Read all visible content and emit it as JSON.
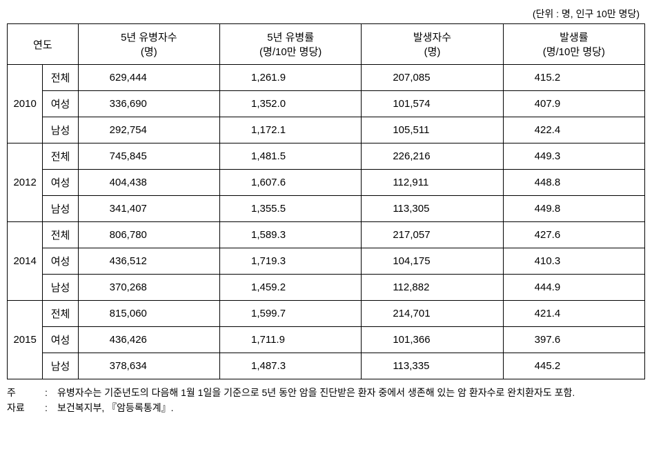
{
  "unit_label": "(단위 : 명,  인구  10만 명당)",
  "headers": {
    "year": "연도",
    "col1": "5년 유병자수\n(명)",
    "col2": "5년 유병률\n(명/10만 명당)",
    "col3": "발생자수\n(명)",
    "col4": "발생률\n(명/10만 명당)"
  },
  "years": [
    {
      "year": "2010",
      "rows": [
        {
          "category": "전체",
          "c1": "629,444",
          "c2": "1,261.9",
          "c3": "207,085",
          "c4": "415.2"
        },
        {
          "category": "여성",
          "c1": "336,690",
          "c2": "1,352.0",
          "c3": "101,574",
          "c4": "407.9"
        },
        {
          "category": "남성",
          "c1": "292,754",
          "c2": "1,172.1",
          "c3": "105,511",
          "c4": "422.4"
        }
      ]
    },
    {
      "year": "2012",
      "rows": [
        {
          "category": "전체",
          "c1": "745,845",
          "c2": "1,481.5",
          "c3": "226,216",
          "c4": "449.3"
        },
        {
          "category": "여성",
          "c1": "404,438",
          "c2": "1,607.6",
          "c3": "112,911",
          "c4": "448.8"
        },
        {
          "category": "남성",
          "c1": "341,407",
          "c2": "1,355.5",
          "c3": "113,305",
          "c4": "449.8"
        }
      ]
    },
    {
      "year": "2014",
      "rows": [
        {
          "category": "전체",
          "c1": "806,780",
          "c2": "1,589.3",
          "c3": "217,057",
          "c4": "427.6"
        },
        {
          "category": "여성",
          "c1": "436,512",
          "c2": "1,719.3",
          "c3": "104,175",
          "c4": "410.3"
        },
        {
          "category": "남성",
          "c1": "370,268",
          "c2": "1,459.2",
          "c3": "112,882",
          "c4": "444.9"
        }
      ]
    },
    {
      "year": "2015",
      "rows": [
        {
          "category": "전체",
          "c1": "815,060",
          "c2": "1,599.7",
          "c3": "214,701",
          "c4": "421.4"
        },
        {
          "category": "여성",
          "c1": "436,426",
          "c2": "1,711.9",
          "c3": "101,366",
          "c4": "397.6"
        },
        {
          "category": "남성",
          "c1": "378,634",
          "c2": "1,487.3",
          "c3": "113,335",
          "c4": "445.2"
        }
      ]
    }
  ],
  "footnotes": {
    "note_label": "주",
    "note_text": "유병자수는 기준년도의 다음해 1월 1일을 기준으로 5년 동안 암을 진단받은 환자 중에서 생존해 있는 암 환자수로 완치환자도 포함.",
    "source_label": "자료",
    "source_text": "보건복지부, 『암등록통계』."
  }
}
